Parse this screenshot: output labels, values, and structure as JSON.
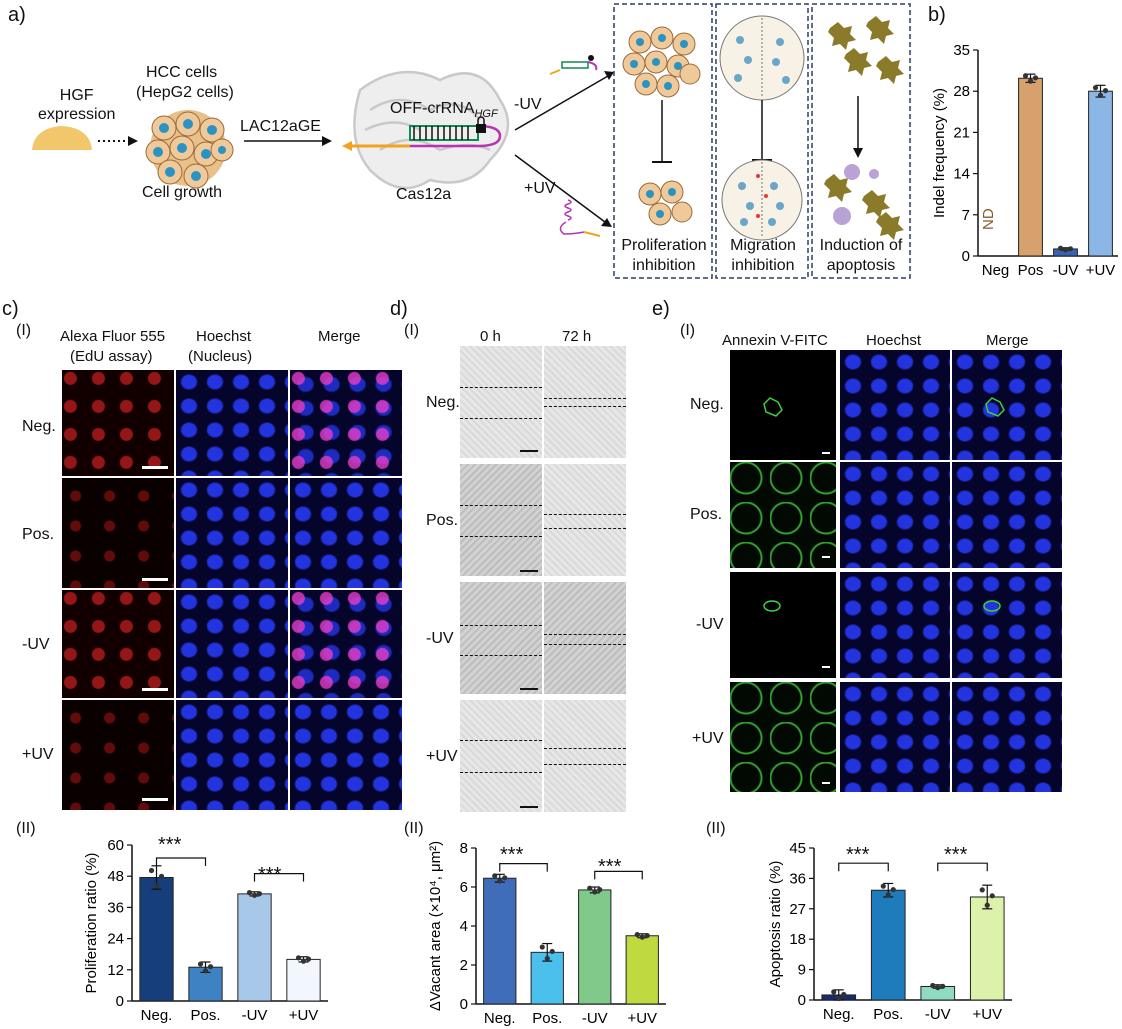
{
  "panel_a": {
    "label": "a)",
    "hgf_expression": "HGF\nexpression",
    "hcc_cells": "HCC cells",
    "hepg2": "(HepG2 cells)",
    "cell_growth": "Cell growth",
    "lac12age": "LAC12aGE",
    "off_crrna": "OFF-crRNA",
    "off_crrna_sub": "HGF",
    "cas12a": "Cas12a",
    "minus_uv": "-UV",
    "plus_uv": "+UV",
    "box1": "Proliferation\ninhibition",
    "box2": "Migration\ninhibition",
    "box3": "Induction of\napoptosis"
  },
  "panel_b": {
    "label": "b)",
    "nd": "ND",
    "chart_data": {
      "type": "bar",
      "categories": [
        "Neg",
        "Pos",
        "-UV",
        "+UV"
      ],
      "values": [
        0,
        30.2,
        1.2,
        28.0
      ],
      "errors": [
        0,
        0.7,
        0.2,
        1.0
      ],
      "ylabel": "Indel frequency (%)",
      "ylim": [
        0,
        35
      ],
      "yticks": [
        0,
        7,
        14,
        21,
        28,
        35
      ],
      "colors": [
        "#ffffff",
        "#d6a16d",
        "#3a62b3",
        "#8ab7e6"
      ]
    }
  },
  "panel_c": {
    "label": "c)",
    "sub1": "(I)",
    "sub2": "(II)",
    "col1": "Alexa Fluor 555",
    "col1b": "(EdU assay)",
    "col2": "Hoechst",
    "col2b": "(Nucleus)",
    "col3": "Merge",
    "rows": [
      "Neg.",
      "Pos.",
      "-UV",
      "+UV"
    ],
    "stars1": "***",
    "stars2": "***",
    "chart_data": {
      "type": "bar",
      "categories": [
        "Neg.",
        "Pos.",
        "-UV",
        "+UV"
      ],
      "values": [
        47.5,
        13,
        41.2,
        16
      ],
      "errors": [
        4.5,
        2.0,
        0.8,
        1.0
      ],
      "ylabel": "Proliferation ratio (%)",
      "ylim": [
        0,
        60
      ],
      "yticks": [
        0,
        12,
        24,
        36,
        48,
        60
      ],
      "colors": [
        "#163e7a",
        "#3f82c4",
        "#a8c8ea",
        "#f2f7fd"
      ]
    }
  },
  "panel_d": {
    "label": "d)",
    "sub1": "(I)",
    "sub2": "(II)",
    "col1": "0 h",
    "col2": "72 h",
    "rows": [
      "Neg.",
      "Pos.",
      "-UV",
      "+UV"
    ],
    "stars1": "***",
    "stars2": "***",
    "chart_data": {
      "type": "bar",
      "categories": [
        "Neg.",
        "Pos.",
        "-UV",
        "+UV"
      ],
      "values": [
        6.45,
        2.65,
        5.85,
        3.5
      ],
      "errors": [
        0.2,
        0.45,
        0.15,
        0.1
      ],
      "ylabel": "ΔVacant area (×10⁴, μm²)",
      "ylim": [
        0,
        8
      ],
      "yticks": [
        0,
        2,
        4,
        6,
        8
      ],
      "colors": [
        "#3f6dba",
        "#4cc0ec",
        "#7fc98a",
        "#bfd941"
      ]
    }
  },
  "panel_e": {
    "label": "e)",
    "sub1": "(I)",
    "sub2": "(II)",
    "col1": "Annexin V-FITC",
    "col2": "Hoechst",
    "col3": "Merge",
    "rows": [
      "Neg.",
      "Pos.",
      "-UV",
      "+UV"
    ],
    "stars1": "***",
    "stars2": "***",
    "chart_data": {
      "type": "bar",
      "categories": [
        "Neg.",
        "Pos.",
        "-UV",
        "+UV"
      ],
      "values": [
        1.5,
        32.5,
        4,
        30.5
      ],
      "errors": [
        1.5,
        2.0,
        0.5,
        3.5
      ],
      "ylabel": "Apoptosis ratio (%)",
      "ylim": [
        0,
        45
      ],
      "yticks": [
        0,
        9,
        18,
        27,
        36,
        45
      ],
      "colors": [
        "#172c6e",
        "#1f7cbc",
        "#8fdbc0",
        "#dcf1a9"
      ]
    }
  }
}
